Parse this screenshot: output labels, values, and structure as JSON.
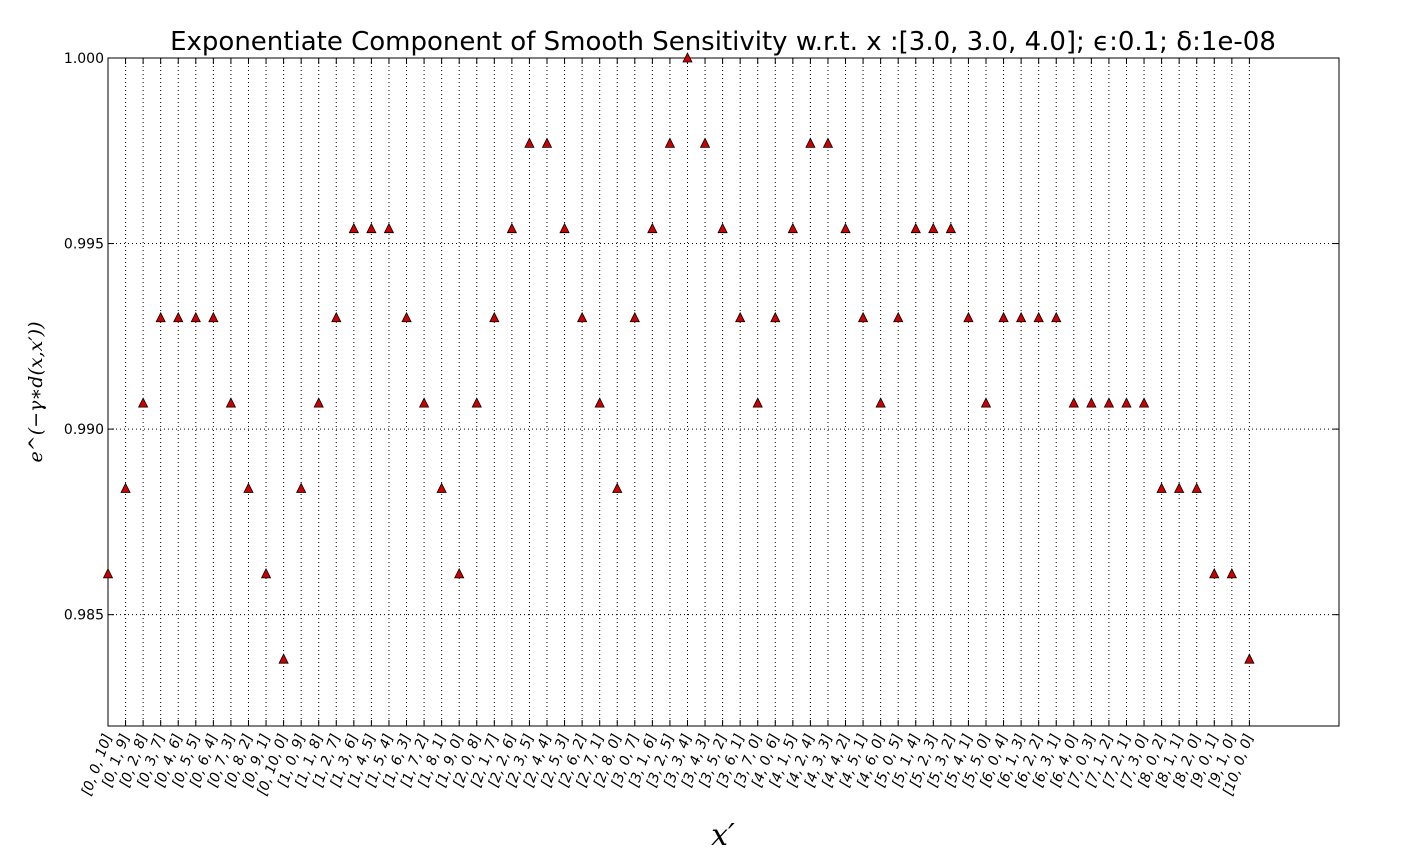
{
  "chart_data": {
    "type": "scatter",
    "title": "Exponentiate Component of Smooth Sensitivity w.r.t. x :[3.0, 3.0, 4.0]; ϵ:0.1; δ:1e-08",
    "xlabel": "x′",
    "ylabel": "e^(−γ∗d(x,x′))",
    "ylim": [
      0.982,
      1.0
    ],
    "yticks": [
      "0.985",
      "0.990",
      "0.995",
      "1.000"
    ],
    "grid": true,
    "marker": "triangle",
    "marker_color": "#cc0000",
    "categories": [
      "[0, 0, 10]",
      "[0, 1, 9]",
      "[0, 2, 8]",
      "[0, 3, 7]",
      "[0, 4, 6]",
      "[0, 5, 5]",
      "[0, 6, 4]",
      "[0, 7, 3]",
      "[0, 8, 2]",
      "[0, 9, 1]",
      "[0, 10, 0]",
      "[1, 0, 9]",
      "[1, 1, 8]",
      "[1, 2, 7]",
      "[1, 3, 6]",
      "[1, 4, 5]",
      "[1, 5, 4]",
      "[1, 6, 3]",
      "[1, 7, 2]",
      "[1, 8, 1]",
      "[1, 9, 0]",
      "[2, 0, 8]",
      "[2, 1, 7]",
      "[2, 2, 6]",
      "[2, 3, 5]",
      "[2, 4, 4]",
      "[2, 5, 3]",
      "[2, 6, 2]",
      "[2, 7, 1]",
      "[2, 8, 0]",
      "[3, 0, 7]",
      "[3, 1, 6]",
      "[3, 2, 5]",
      "[3, 3, 4]",
      "[3, 4, 3]",
      "[3, 5, 2]",
      "[3, 6, 1]",
      "[3, 7, 0]",
      "[4, 0, 6]",
      "[4, 1, 5]",
      "[4, 2, 4]",
      "[4, 3, 3]",
      "[4, 4, 2]",
      "[4, 5, 1]",
      "[4, 6, 0]",
      "[5, 0, 5]",
      "[5, 1, 4]",
      "[5, 2, 3]",
      "[5, 3, 2]",
      "[5, 4, 1]",
      "[5, 5, 0]",
      "[6, 0, 4]",
      "[6, 1, 3]",
      "[6, 2, 2]",
      "[6, 3, 1]",
      "[6, 4, 0]",
      "[7, 0, 3]",
      "[7, 1, 2]",
      "[7, 2, 1]",
      "[7, 3, 0]",
      "[8, 0, 2]",
      "[8, 1, 1]",
      "[8, 2, 0]",
      "[9, 0, 1]",
      "[9, 1, 0]",
      "[10, 0, 0]"
    ],
    "values": [
      0.9861,
      0.9884,
      0.9907,
      0.993,
      0.993,
      0.993,
      0.993,
      0.9907,
      0.9884,
      0.9861,
      0.9838,
      0.9884,
      0.9907,
      0.993,
      0.9954,
      0.9954,
      0.9954,
      0.993,
      0.9907,
      0.9884,
      0.9861,
      0.9907,
      0.993,
      0.9954,
      0.9977,
      0.9977,
      0.9954,
      0.993,
      0.9907,
      0.9884,
      0.993,
      0.9954,
      0.9977,
      1.0,
      0.9977,
      0.9954,
      0.993,
      0.9907,
      0.993,
      0.9954,
      0.9977,
      0.9977,
      0.9954,
      0.993,
      0.9907,
      0.993,
      0.9954,
      0.9954,
      0.9954,
      0.993,
      0.9907,
      0.993,
      0.993,
      0.993,
      0.993,
      0.9907,
      0.9907,
      0.9907,
      0.9907,
      0.9907,
      0.9884,
      0.9884,
      0.9884,
      0.9861,
      0.9861,
      0.9838
    ]
  }
}
